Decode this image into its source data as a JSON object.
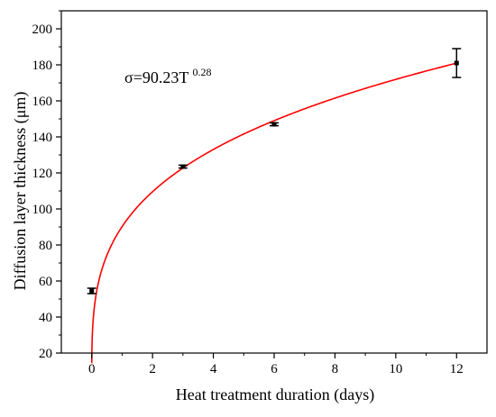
{
  "chart_data": {
    "type": "scatter",
    "title": "",
    "xlabel": "Heat treatment duration (days)",
    "ylabel": "Diffusion layer thickness (μm)",
    "xlim": [
      -1,
      13
    ],
    "ylim": [
      20,
      210
    ],
    "x_ticks": [
      0,
      2,
      4,
      6,
      8,
      10,
      12
    ],
    "y_ticks": [
      20,
      40,
      60,
      80,
      100,
      120,
      140,
      160,
      180,
      200
    ],
    "grid": false,
    "legend": "none",
    "series": [
      {
        "kind": "points_with_error_bars",
        "color": "#000000",
        "points": [
          {
            "x": 0,
            "y": 54.5,
            "err": 1.5
          },
          {
            "x": 3,
            "y": 123.5,
            "err": 0.8
          },
          {
            "x": 6,
            "y": 147,
            "err": 0.8
          },
          {
            "x": 12,
            "y": 181,
            "err": 8
          }
        ]
      },
      {
        "kind": "fit_curve",
        "color": "#ff0000",
        "coefficient": 90.23,
        "exponent": 0.28,
        "x_range": [
          0,
          12
        ]
      }
    ],
    "annotation": {
      "prefix": "σ=90.23T",
      "superscript": "0.28"
    }
  }
}
